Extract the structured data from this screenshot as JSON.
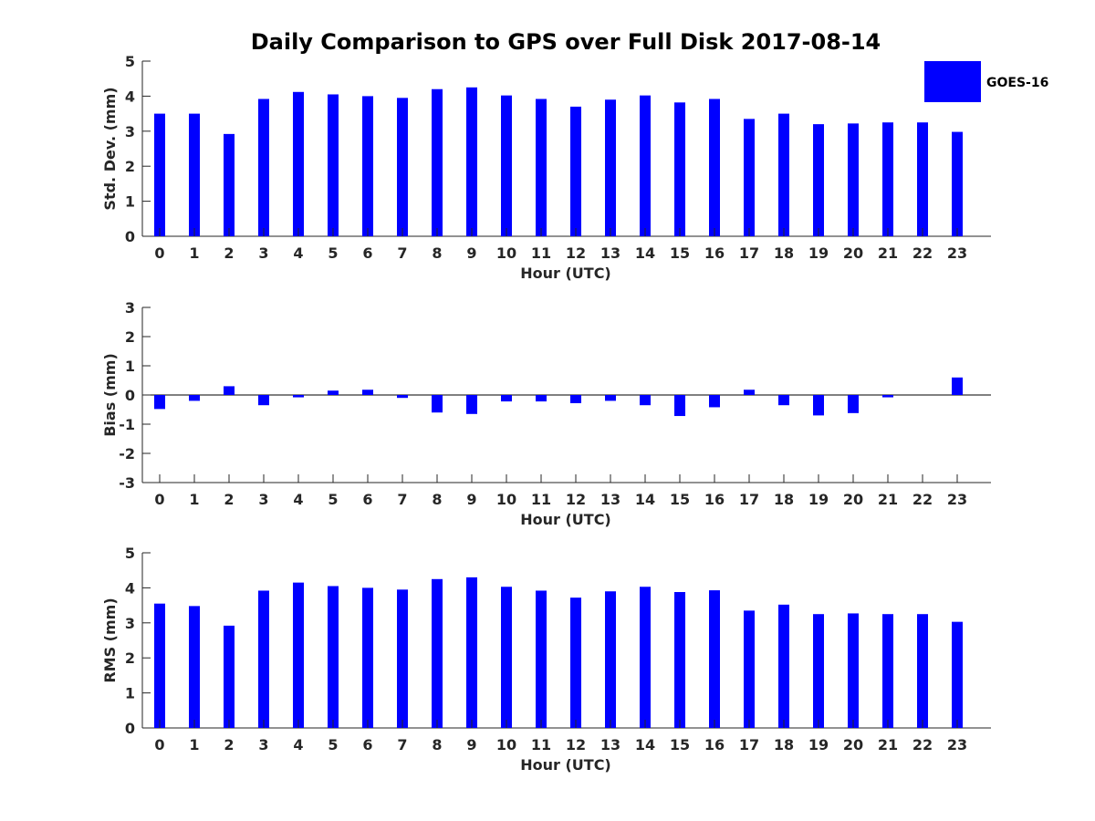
{
  "chart_data": {
    "type": "bar",
    "title": "Daily Comparison to GPS over Full Disk 2017-08-14",
    "legend": {
      "label": "GOES-16",
      "placement": "top-right"
    },
    "bar_color": "#0000ff",
    "categories": [
      "0",
      "1",
      "2",
      "3",
      "4",
      "5",
      "6",
      "7",
      "8",
      "9",
      "10",
      "11",
      "12",
      "13",
      "14",
      "15",
      "16",
      "17",
      "18",
      "19",
      "20",
      "21",
      "22",
      "23"
    ],
    "panels": [
      {
        "name": "std-dev",
        "ylabel": "Std. Dev. (mm)",
        "xlabel": "Hour (UTC)",
        "ylim": [
          0,
          5
        ],
        "yticks": [
          "0",
          "1",
          "2",
          "3",
          "4",
          "5"
        ],
        "values": [
          3.5,
          3.5,
          2.92,
          3.92,
          4.12,
          4.05,
          4.0,
          3.95,
          4.2,
          4.25,
          4.02,
          3.92,
          3.7,
          3.9,
          4.02,
          3.82,
          3.92,
          3.35,
          3.5,
          3.2,
          3.22,
          3.25,
          3.25,
          2.98
        ]
      },
      {
        "name": "bias",
        "ylabel": "Bias (mm)",
        "xlabel": "Hour (UTC)",
        "ylim": [
          -3,
          3
        ],
        "yticks": [
          "-3",
          "-2",
          "-1",
          "0",
          "1",
          "2",
          "3"
        ],
        "values": [
          -0.48,
          -0.2,
          0.3,
          -0.35,
          -0.08,
          0.15,
          0.18,
          -0.1,
          -0.6,
          -0.65,
          -0.22,
          -0.22,
          -0.28,
          -0.2,
          -0.35,
          -0.72,
          -0.42,
          0.18,
          -0.35,
          -0.7,
          -0.62,
          -0.08,
          0.0,
          0.6
        ]
      },
      {
        "name": "rms",
        "ylabel": "RMS (mm)",
        "xlabel": "Hour (UTC)",
        "ylim": [
          0,
          5
        ],
        "yticks": [
          "0",
          "1",
          "2",
          "3",
          "4",
          "5"
        ],
        "values": [
          3.55,
          3.48,
          2.92,
          3.92,
          4.15,
          4.05,
          4.0,
          3.95,
          4.25,
          4.3,
          4.03,
          3.92,
          3.72,
          3.9,
          4.03,
          3.88,
          3.93,
          3.35,
          3.52,
          3.25,
          3.27,
          3.25,
          3.25,
          3.03
        ]
      }
    ]
  }
}
